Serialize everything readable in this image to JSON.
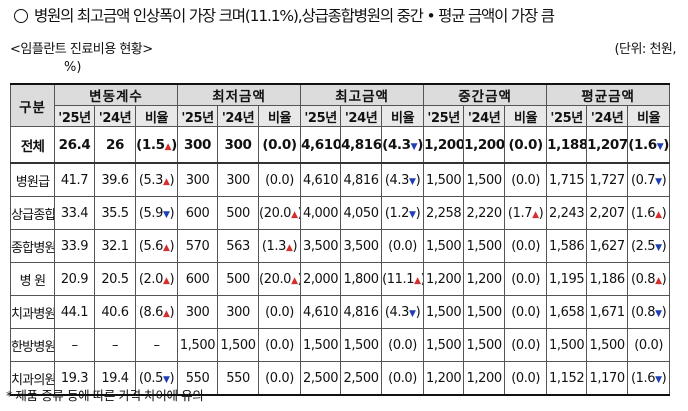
{
  "title": "병원의 최고금액 인상폭이 가장 크며(11.1%),상급종합병원의 중간 • 평균 금액이 가장 큼",
  "subtitle": "<임플란트 진료비용 현황>",
  "unit": "(단위: 천원,",
  "unit_pct": "%)",
  "header": {
    "gubun": "구분",
    "groups": [
      "변동계수",
      "최저금액",
      "최고금액",
      "중간금액",
      "평균금액"
    ],
    "sub": [
      "'25년",
      "'24년",
      "비율"
    ]
  },
  "rows": [
    {
      "name": "전체",
      "cells": [
        [
          "26.4",
          "26",
          "(1.5",
          "up"
        ],
        [
          "300",
          "300",
          "(0.0)",
          ""
        ],
        [
          "4,610",
          "4,816",
          "(4.3",
          "down"
        ],
        [
          "1,200",
          "1,200",
          "(0.0)",
          ""
        ],
        [
          "1,188",
          "1,207",
          "(1.6",
          "down"
        ]
      ]
    },
    {
      "name": "병원급",
      "cells": [
        [
          "41.7",
          "39.6",
          "(5.3",
          "up"
        ],
        [
          "300",
          "300",
          "(0.0)",
          ""
        ],
        [
          "4,610",
          "4,816",
          "(4.3",
          "down"
        ],
        [
          "1,500",
          "1,500",
          "(0.0)",
          ""
        ],
        [
          "1,715",
          "1,727",
          "(0.7",
          "down"
        ]
      ]
    },
    {
      "name": "상급종합",
      "cells": [
        [
          "33.4",
          "35.5",
          "(5.9",
          "down"
        ],
        [
          "600",
          "500",
          "(20.0",
          "up"
        ],
        [
          "4,000",
          "4,050",
          "(1.2",
          "down"
        ],
        [
          "2,258",
          "2,220",
          "(1.7",
          "up"
        ],
        [
          "2,243",
          "2,207",
          "(1.6",
          "up"
        ]
      ]
    },
    {
      "name": "종합병원",
      "cells": [
        [
          "33.9",
          "32.1",
          "(5.6",
          "up"
        ],
        [
          "570",
          "563",
          "(1.3",
          "up"
        ],
        [
          "3,500",
          "3,500",
          "(0.0)",
          ""
        ],
        [
          "1,500",
          "1,500",
          "(0.0)",
          ""
        ],
        [
          "1,586",
          "1,627",
          "(2.5",
          "down"
        ]
      ]
    },
    {
      "name": "병 원",
      "cells": [
        [
          "20.9",
          "20.5",
          "(2.0",
          "up"
        ],
        [
          "600",
          "500",
          "(20.0",
          "up"
        ],
        [
          "2,000",
          "1,800",
          "(11.1",
          "up"
        ],
        [
          "1,200",
          "1,200",
          "(0.0)",
          ""
        ],
        [
          "1,195",
          "1,186",
          "(0.8",
          "up"
        ]
      ]
    },
    {
      "name": "치과병원",
      "cells": [
        [
          "44.1",
          "40.6",
          "(8.6",
          "up"
        ],
        [
          "300",
          "300",
          "(0.0)",
          ""
        ],
        [
          "4,610",
          "4,816",
          "(4.3",
          "down"
        ],
        [
          "1,500",
          "1,500",
          "(0.0)",
          ""
        ],
        [
          "1,658",
          "1,671",
          "(0.8",
          "down"
        ]
      ]
    },
    {
      "name": "한방병원",
      "cells": [
        [
          "–",
          "–",
          "–",
          ""
        ],
        [
          "1,500",
          "1,500",
          "(0.0)",
          ""
        ],
        [
          "1,500",
          "1,500",
          "(0.0)",
          ""
        ],
        [
          "1,500",
          "1,500",
          "(0.0)",
          ""
        ],
        [
          "1,500",
          "1,500",
          "(0.0)",
          ""
        ]
      ]
    },
    {
      "name": "치과의원",
      "cells": [
        [
          "19.3",
          "19.4",
          "(0.5",
          "down"
        ],
        [
          "550",
          "550",
          "(0.0)",
          ""
        ],
        [
          "2,500",
          "2,500",
          "(0.0)",
          ""
        ],
        [
          "1,200",
          "1,200",
          "(0.0)",
          ""
        ],
        [
          "1,152",
          "1,170",
          "(1.6",
          "down"
        ]
      ]
    }
  ],
  "footnote": "* 제품 종류 등에 따른 가격 차이에 유의",
  "colors": {
    "up": "#d32f2f",
    "down": "#1e3fb4",
    "header_bg": "#dcdcdc"
  }
}
